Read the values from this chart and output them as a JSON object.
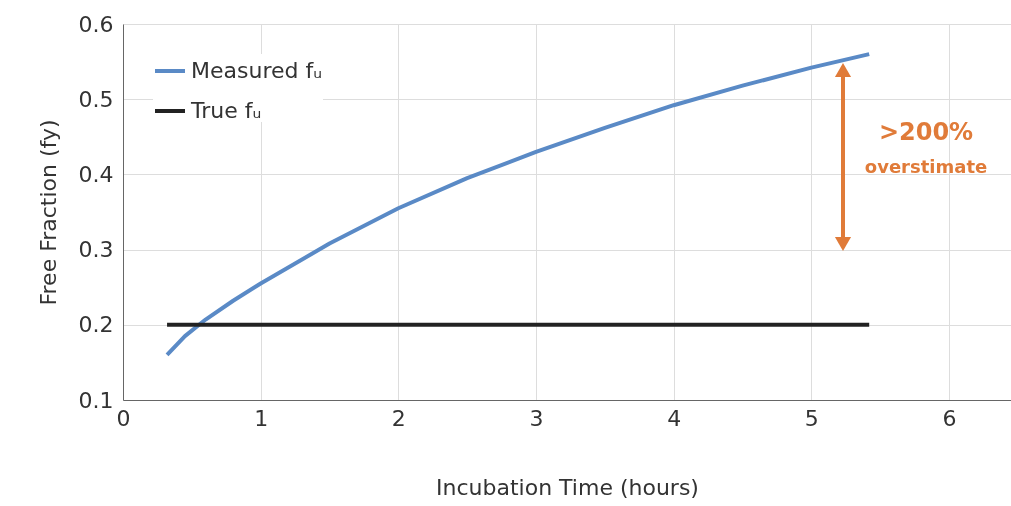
{
  "chart_data": {
    "type": "line",
    "xlabel": "Incubation Time (hours)",
    "ylabel": "Free Fraction (fy)",
    "xlim": [
      0,
      6.45
    ],
    "xticks": [
      0,
      1,
      2,
      3,
      4,
      5,
      6
    ],
    "ylim": [
      0.1,
      0.6
    ],
    "yticks": [
      0.1,
      0.2,
      0.3,
      0.4,
      0.5,
      0.6
    ],
    "grid": true,
    "legend": "top left",
    "line_style": "solid",
    "marker": "none",
    "series": [
      {
        "name": "Measured fᵤ",
        "color": "#5a8ac6",
        "x": [
          0.32,
          0.45,
          0.6,
          0.8,
          1,
          1.5,
          2,
          2.5,
          3,
          3.5,
          4,
          4.5,
          5,
          5.42
        ],
        "values": [
          0.16,
          0.185,
          0.207,
          0.232,
          0.255,
          0.308,
          0.355,
          0.395,
          0.43,
          0.462,
          0.492,
          0.518,
          0.542,
          0.56
        ]
      },
      {
        "name": "True fᵤ",
        "color": "#222222",
        "x": [
          0.32,
          5.42
        ],
        "values": [
          0.2,
          0.2
        ]
      }
    ],
    "annotations": [
      ">200%",
      "overstimate"
    ]
  }
}
